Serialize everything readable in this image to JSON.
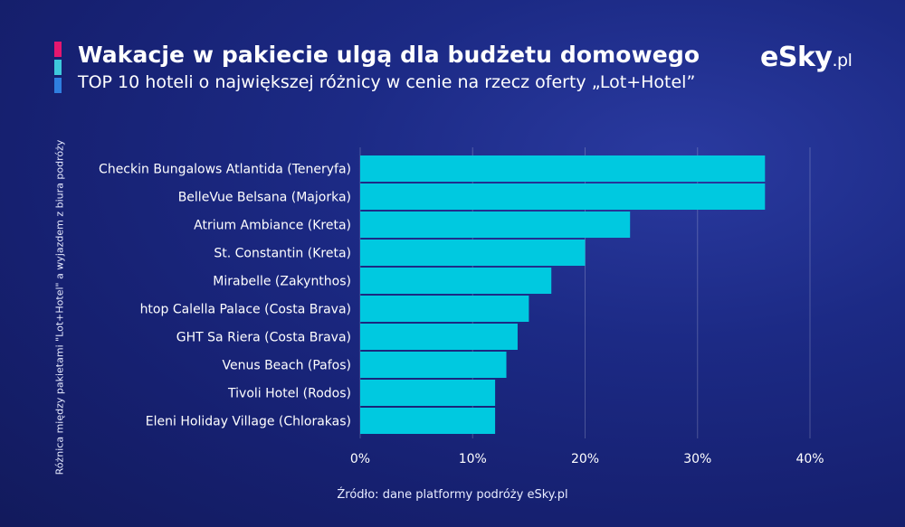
{
  "header": {
    "title": "Wakacje w pakiecie ulgą dla budżetu domowego",
    "subtitle": "TOP 10 hoteli o największej różnicy w cenie na rzecz oferty „Lot+Hotel”",
    "logo_main": "eSky",
    "logo_tld": ".pl"
  },
  "colors": {
    "bar": "#00c9e0",
    "background": "#1c2a85",
    "accent_pink": "#e5176f",
    "accent_cyan": "#3ec9dc",
    "accent_blue": "#2f7fe0"
  },
  "chart_data": {
    "type": "bar",
    "orientation": "horizontal",
    "categories": [
      "Checkin Bungalows Atlantida (Teneryfa)",
      "BelleVue Belsana (Majorka)",
      "Atrium Ambiance (Kreta)",
      "St. Constantin (Kreta)",
      "Mirabelle (Zakynthos)",
      "htop Calella Palace (Costa Brava)",
      "GHT Sa Riera (Costa Brava)",
      "Venus Beach (Pafos)",
      "Tivoli Hotel (Rodos)",
      "Eleni Holiday Village (Chlorakas)"
    ],
    "values": [
      36,
      36,
      24,
      20,
      17,
      15,
      14,
      13,
      12,
      12
    ],
    "unit": "%",
    "xlim": [
      0,
      40
    ],
    "xticks": [
      "0%",
      "10%",
      "20%",
      "30%",
      "40%"
    ],
    "ylabel": "Różnica między pakietami \"Lot+Hotel\" a wyjazdem z biura podróży",
    "grid": true
  },
  "source": "Źródło: dane platformy podróży eSky.pl"
}
